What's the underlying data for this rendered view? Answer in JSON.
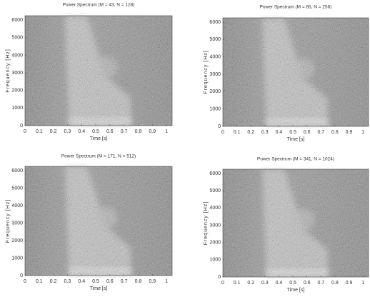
{
  "chart_data": [
    {
      "type": "spectrogram",
      "title": "Power Spectrum (M = 43, N = 128)",
      "xlabel": "Time [s]",
      "ylabel": "Frequency [Hz]",
      "xlim": [
        0,
        1.04
      ],
      "ylim": [
        0,
        6250
      ],
      "xticks": [
        0,
        0.1,
        0.2,
        0.3,
        0.4,
        0.5,
        0.6,
        0.7,
        0.8,
        0.9,
        1
      ],
      "yticks": [
        0,
        1000,
        2000,
        3000,
        4000,
        5000,
        6000
      ]
    },
    {
      "type": "spectrogram",
      "title": "Power Spectrum (M = 85, N = 256)",
      "xlabel": "Time [s]",
      "ylabel": "Frequency [Hz]",
      "xlim": [
        0,
        1.04
      ],
      "ylim": [
        0,
        6250
      ],
      "xticks": [
        0,
        0.1,
        0.2,
        0.3,
        0.4,
        0.5,
        0.6,
        0.7,
        0.8,
        0.9,
        1
      ],
      "yticks": [
        0,
        1000,
        2000,
        3000,
        4000,
        5000,
        6000
      ]
    },
    {
      "type": "spectrogram",
      "title": "Power Spectrum (M = 171, N = 512)",
      "xlabel": "Time [s]",
      "ylabel": "Frequency [Hz]",
      "xlim": [
        0,
        1.04
      ],
      "ylim": [
        0,
        6250
      ],
      "xticks": [
        0,
        0.1,
        0.2,
        0.3,
        0.4,
        0.5,
        0.6,
        0.7,
        0.8,
        0.9,
        1
      ],
      "yticks": [
        0,
        1000,
        2000,
        3000,
        4000,
        5000,
        6000
      ]
    },
    {
      "type": "spectrogram",
      "title": "Power Spectrum (M = 341, N = 1024)",
      "xlabel": "Time [s]",
      "ylabel": "Frequency [Hz]",
      "xlim": [
        0,
        1.04
      ],
      "ylim": [
        0,
        6250
      ],
      "xticks": [
        0,
        0.1,
        0.2,
        0.3,
        0.4,
        0.5,
        0.6,
        0.7,
        0.8,
        0.9,
        1
      ],
      "yticks": [
        0,
        1000,
        2000,
        3000,
        4000,
        5000,
        6000
      ]
    }
  ]
}
